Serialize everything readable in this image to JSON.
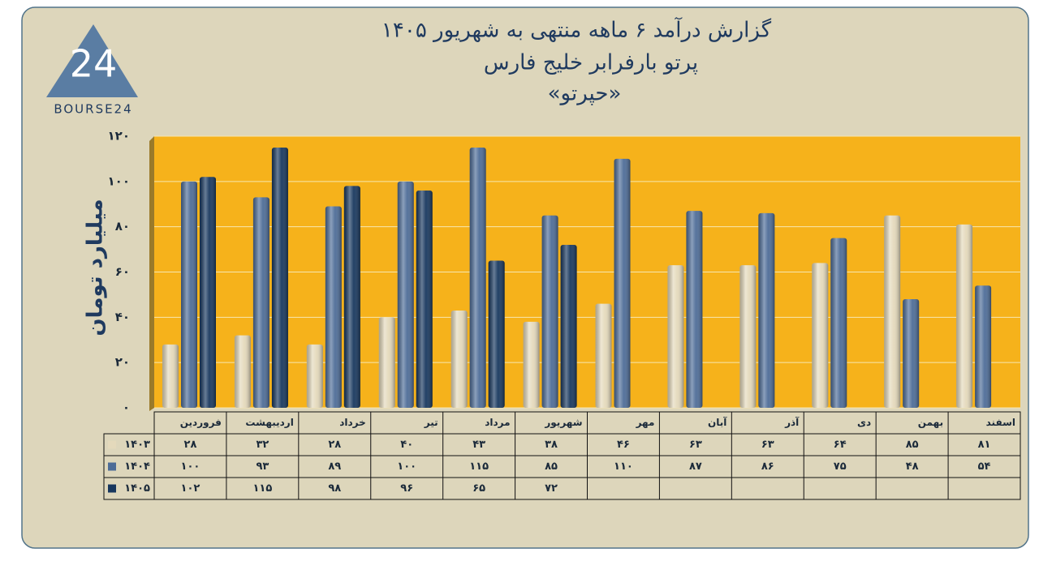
{
  "logo": {
    "mark": "24",
    "text": "BOURSE24"
  },
  "chart_data": {
    "type": "bar",
    "title": "گزارش درآمد ۶ ماهه منتهی به شهریور ۱۴۰۵",
    "subtitle": "پرتو بارفرابر خلیج فارس",
    "subtitle2": "«حپرتو»",
    "y_label": "میلیارد تومان",
    "categories": [
      "فروردین",
      "اردیبهشت",
      "خرداد",
      "تیر",
      "مرداد",
      "شهریور",
      "مهر",
      "آبان",
      "آذر",
      "دی",
      "بهمن",
      "اسفند"
    ],
    "series": [
      {
        "name": "۱۴۰۳",
        "color": "#e4d9bb",
        "values": [
          28,
          32,
          28,
          40,
          43,
          38,
          46,
          63,
          63,
          64,
          85,
          81
        ],
        "value_labels": [
          "۲۸",
          "۳۲",
          "۲۸",
          "۴۰",
          "۴۳",
          "۳۸",
          "۴۶",
          "۶۳",
          "۶۳",
          "۶۴",
          "۸۵",
          "۸۱"
        ]
      },
      {
        "name": "۱۴۰۴",
        "color": "#4d6c97",
        "values": [
          100,
          93,
          89,
          100,
          115,
          85,
          110,
          87,
          86,
          75,
          48,
          54
        ],
        "value_labels": [
          "۱۰۰",
          "۹۳",
          "۸۹",
          "۱۰۰",
          "۱۱۵",
          "۸۵",
          "۱۱۰",
          "۸۷",
          "۸۶",
          "۷۵",
          "۴۸",
          "۵۴"
        ]
      },
      {
        "name": "۱۴۰۵",
        "color": "#17375e",
        "values": [
          102,
          115,
          98,
          96,
          65,
          72,
          null,
          null,
          null,
          null,
          null,
          null
        ],
        "value_labels": [
          "۱۰۲",
          "۱۱۵",
          "۹۸",
          "۹۶",
          "۶۵",
          "۷۲",
          null,
          null,
          null,
          null,
          null,
          null
        ]
      }
    ],
    "ylim": [
      0,
      120
    ],
    "yticks": [
      {
        "value": 0,
        "label": "۰"
      },
      {
        "value": 20,
        "label": "۲۰"
      },
      {
        "value": 40,
        "label": "۴۰"
      },
      {
        "value": 60,
        "label": "۶۰"
      },
      {
        "value": 80,
        "label": "۸۰"
      },
      {
        "value": 100,
        "label": "۱۰۰"
      },
      {
        "value": 120,
        "label": "۱۲۰"
      }
    ],
    "grid": true,
    "plot_color": "#f6b21b"
  }
}
